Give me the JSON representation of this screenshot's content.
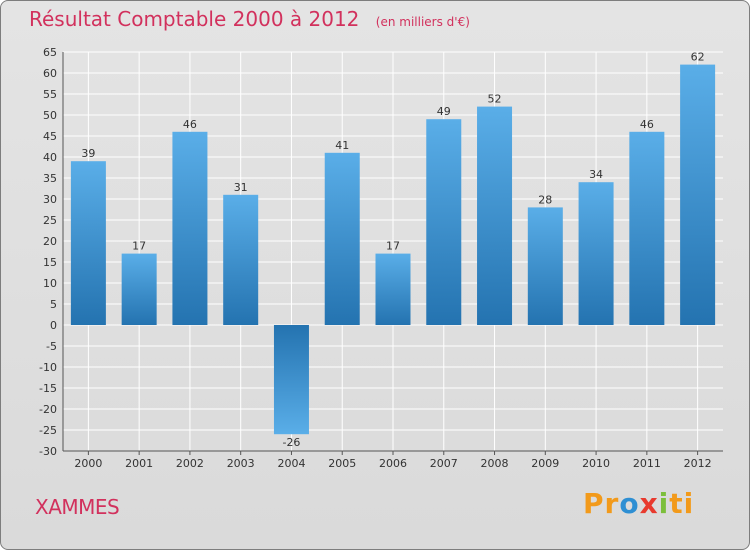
{
  "chart_data": {
    "type": "bar",
    "title": "Résultat Comptable 2000 à 2012",
    "subtitle": "(en milliers d'€)",
    "categories": [
      "2000",
      "2001",
      "2002",
      "2003",
      "2004",
      "2005",
      "2006",
      "2007",
      "2008",
      "2009",
      "2010",
      "2011",
      "2012"
    ],
    "values": [
      39,
      17,
      46,
      31,
      -26,
      41,
      17,
      49,
      52,
      28,
      34,
      46,
      62
    ],
    "ylim": [
      -30,
      65
    ],
    "ytick_step": 5,
    "grid": true,
    "bar_color_light": "#5aaee8",
    "bar_color_dark": "#2473b0"
  },
  "footer": {
    "commune": "XAMMES",
    "brand_parts": [
      "Pr",
      "o",
      "x",
      "i",
      "ti"
    ]
  }
}
